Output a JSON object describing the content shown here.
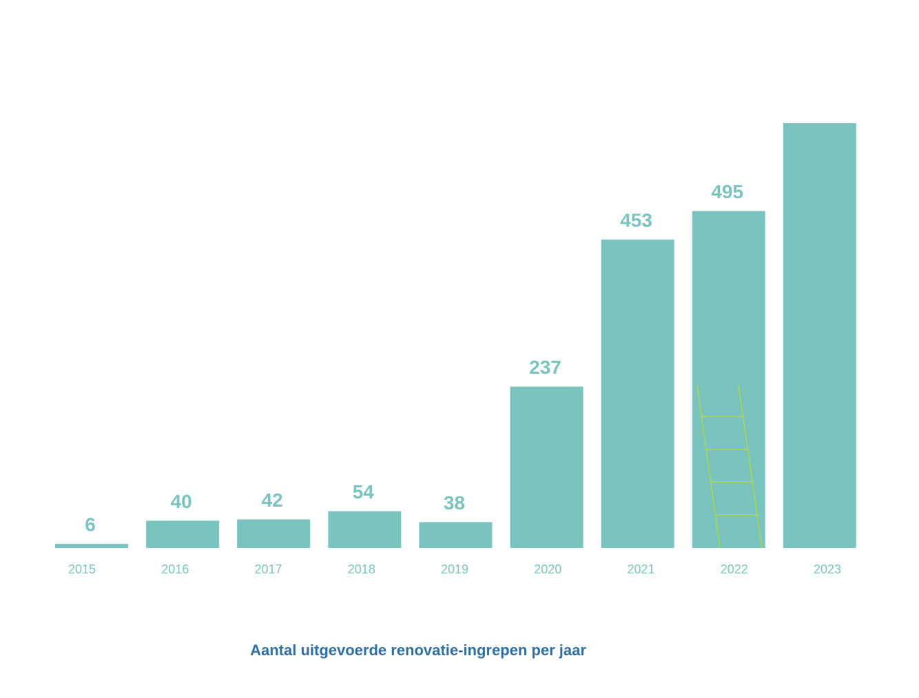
{
  "chart_data": {
    "type": "bar",
    "title": "Aantal uitgevoerde renovatie-ingrepen per jaar",
    "categories": [
      "2015",
      "2016",
      "2017",
      "2018",
      "2019",
      "2020",
      "2021",
      "2022",
      "2023"
    ],
    "values": [
      6,
      40,
      42,
      54,
      38,
      237,
      453,
      495,
      624
    ],
    "color": "#7bc3bf"
  }
}
